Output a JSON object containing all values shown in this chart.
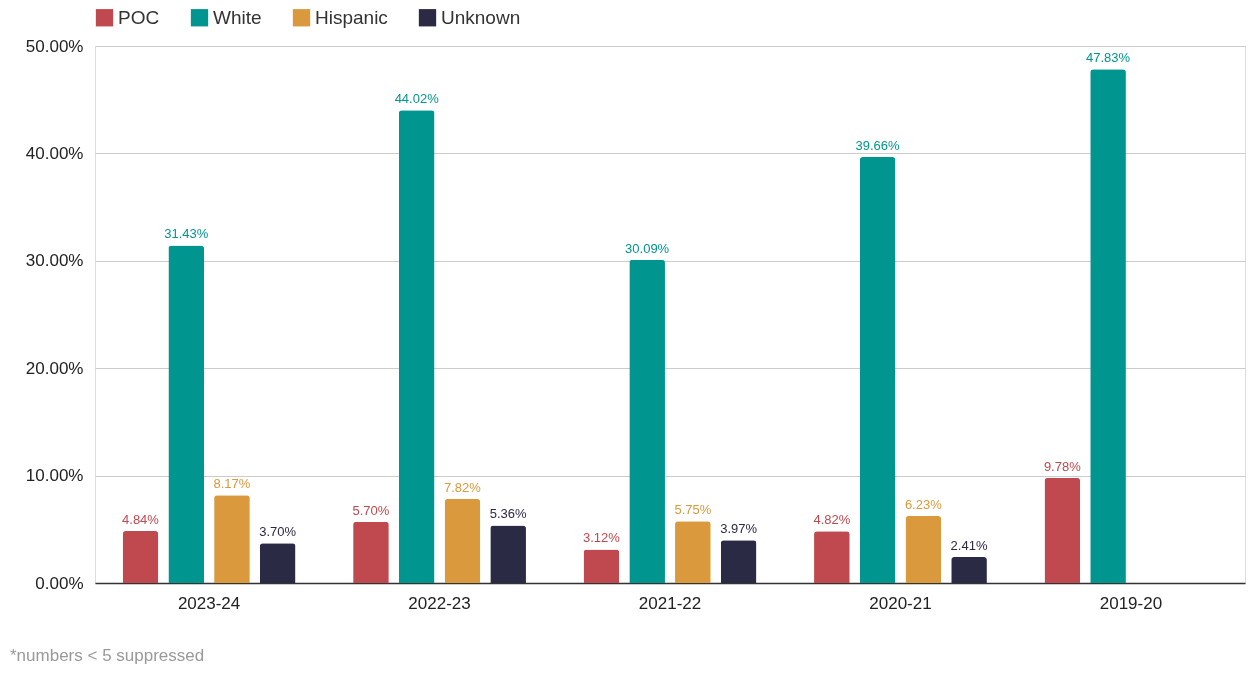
{
  "chart_data": {
    "type": "bar",
    "categories": [
      "2023-24",
      "2022-23",
      "2021-22",
      "2020-21",
      "2019-20"
    ],
    "series": [
      {
        "name": "POC",
        "color": "#c0494f",
        "values": [
          4.84,
          5.7,
          3.12,
          4.82,
          9.78
        ],
        "value_labels": [
          "4.84%",
          "5.70%",
          "3.12%",
          "4.82%",
          "9.78%"
        ]
      },
      {
        "name": "White",
        "color": "#00968f",
        "values": [
          31.43,
          44.02,
          30.09,
          39.66,
          47.83
        ],
        "value_labels": [
          "31.43%",
          "44.02%",
          "30.09%",
          "39.66%",
          "47.83%"
        ]
      },
      {
        "name": "Hispanic",
        "color": "#d9993c",
        "values": [
          8.17,
          7.82,
          5.75,
          6.23,
          null
        ],
        "value_labels": [
          "8.17%",
          "7.82%",
          "5.75%",
          "6.23%",
          null
        ]
      },
      {
        "name": "Unknown",
        "color": "#2b2a45",
        "values": [
          3.7,
          5.36,
          3.97,
          2.41,
          null
        ],
        "value_labels": [
          "3.70%",
          "5.36%",
          "3.97%",
          "2.41%",
          null
        ]
      }
    ],
    "ylim": [
      0,
      50
    ],
    "yticks": [
      {
        "value": 0,
        "label": "0.00%"
      },
      {
        "value": 10,
        "label": "10.00%"
      },
      {
        "value": 20,
        "label": "20.00%"
      },
      {
        "value": 30,
        "label": "30.00%"
      },
      {
        "value": 40,
        "label": "40.00%"
      },
      {
        "value": 50,
        "label": "50.00%"
      }
    ],
    "grid": "y",
    "legend": "top",
    "annotations": [
      "*numbers < 5 suppressed"
    ]
  }
}
